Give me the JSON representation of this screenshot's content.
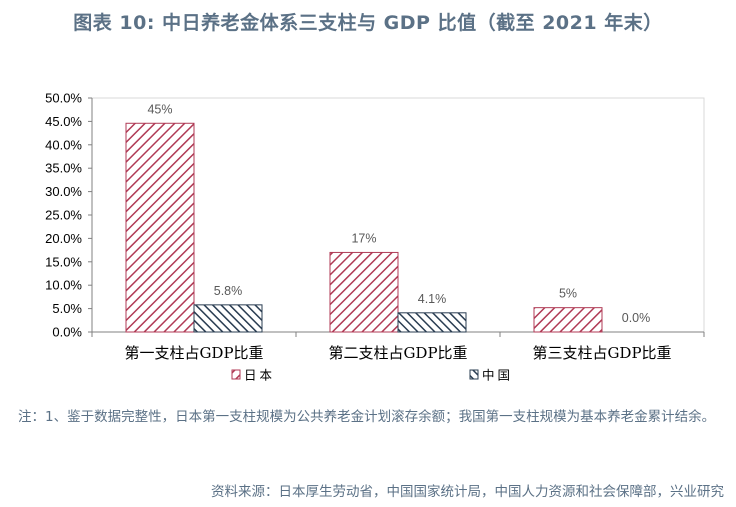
{
  "title": "图表 10: 中日养老金体系三支柱与 GDP 比值（截至 2021 年末）",
  "note": "注：1、鉴于数据完整性，日本第一支柱规模为公共养老金计划滚存余额；我国第一支柱规模为基本养老金累计结余。",
  "source": "资料来源：日本厚生劳动省，中国国家统计局，中国人力资源和社会保障部，兴业研究",
  "colors": {
    "japan_stripe": "#b03a55",
    "china_stripe": "#2a3d52",
    "axis": "#808080",
    "text": "#000000",
    "label": "#595959",
    "title": "#5b7186"
  },
  "chart_data": {
    "type": "bar",
    "categories": [
      "第一支柱占GDP比重",
      "第二支柱占GDP比重",
      "第三支柱占GDP比重"
    ],
    "series": [
      {
        "name": "日本",
        "values": [
          44.6,
          17.0,
          5.2
        ],
        "labels": [
          "45%",
          "17%",
          "5%"
        ],
        "pattern": "diag-down"
      },
      {
        "name": "中国",
        "values": [
          5.8,
          4.1,
          0.0
        ],
        "labels": [
          "5.8%",
          "4.1%",
          "0.0%"
        ],
        "pattern": "diag-up"
      }
    ],
    "yticks": [
      "0.0%",
      "5.0%",
      "10.0%",
      "15.0%",
      "20.0%",
      "25.0%",
      "30.0%",
      "35.0%",
      "40.0%",
      "45.0%",
      "50.0%"
    ],
    "ylim": [
      0,
      50
    ],
    "grid": false,
    "legend": "bottom"
  }
}
